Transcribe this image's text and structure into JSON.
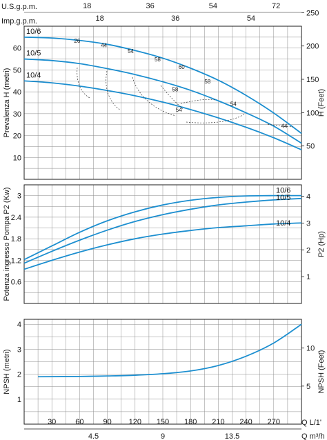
{
  "colors": {
    "curve": "#1d8fd0",
    "grid": "#8a8a8a",
    "text": "#1a1a1a"
  },
  "top_axes": {
    "usgpm": {
      "label": "U.S.g.p.m.",
      "ticks": [
        "18",
        "36",
        "54",
        "72"
      ]
    },
    "impgpm": {
      "label": "Imp.g.p.m.",
      "ticks": [
        "18",
        "36",
        "54"
      ]
    }
  },
  "bottom_axes": {
    "q_lmin": {
      "label": "Q  L/1'",
      "ticks": [
        "30",
        "60",
        "90",
        "120",
        "150",
        "180",
        "210",
        "240",
        "270"
      ]
    },
    "q_m3h": {
      "label": "Q  m³/h",
      "ticks": [
        "4.5",
        "9",
        "13.5"
      ]
    }
  },
  "chart_data": [
    {
      "type": "line",
      "ylabel": "Prevalenza H (metri)",
      "y2label": "H (Feet)",
      "xlim": [
        0,
        300
      ],
      "ylim": [
        0,
        70
      ],
      "y_ticks": [
        "10",
        "20",
        "30",
        "40",
        "50",
        "60"
      ],
      "y2_ticks": [
        "50",
        "100",
        "150",
        "200",
        "250"
      ],
      "series": [
        {
          "name": "10/6",
          "x": [
            0,
            30,
            60,
            90,
            120,
            150,
            180,
            210,
            240,
            270,
            300
          ],
          "values": [
            65,
            64.6,
            63.5,
            61.7,
            58.9,
            55.4,
            50.8,
            45.3,
            38.4,
            30.3,
            21
          ]
        },
        {
          "name": "10/5",
          "x": [
            0,
            30,
            60,
            90,
            120,
            150,
            180,
            210,
            240,
            270,
            300
          ],
          "values": [
            55,
            54.3,
            52.9,
            50.6,
            47.9,
            44.6,
            40.7,
            35.9,
            30.4,
            24.3,
            16.5
          ]
        },
        {
          "name": "10/4",
          "x": [
            0,
            30,
            60,
            90,
            120,
            150,
            180,
            210,
            240,
            270,
            300
          ],
          "values": [
            45,
            44.1,
            42.6,
            40.6,
            38.2,
            35.3,
            31.9,
            28.1,
            23.8,
            19,
            13.5
          ]
        }
      ],
      "efficiency_labels": [
        {
          "text": "26",
          "x": 57,
          "y": 63.4
        },
        {
          "text": "44",
          "x": 86,
          "y": 61.4
        },
        {
          "text": "54",
          "x": 115,
          "y": 58.6
        },
        {
          "text": "58",
          "x": 144,
          "y": 54.9
        },
        {
          "text": "60",
          "x": 170,
          "y": 51.4
        },
        {
          "text": "58",
          "x": 198,
          "y": 44.7
        },
        {
          "text": "58",
          "x": 163,
          "y": 41.2
        },
        {
          "text": "54",
          "x": 167,
          "y": 31.8
        },
        {
          "text": "54",
          "x": 226,
          "y": 34.6
        },
        {
          "text": "44",
          "x": 281,
          "y": 24.4
        }
      ]
    },
    {
      "type": "line",
      "ylabel": "Potenza ingresso Pompa P2 (Kw)",
      "y2label": "P2 (Hp)",
      "xlim": [
        0,
        300
      ],
      "ylim": [
        0,
        3.3
      ],
      "y_ticks": [
        "0.6",
        "1.2",
        "1.8",
        "2.4",
        "3"
      ],
      "y2_ticks": [
        "1",
        "2",
        "3",
        "4"
      ],
      "series": [
        {
          "name": "10/6",
          "x": [
            0,
            30,
            60,
            90,
            120,
            150,
            180,
            210,
            240,
            270,
            300
          ],
          "values": [
            1.22,
            1.6,
            1.98,
            2.3,
            2.55,
            2.74,
            2.87,
            2.95,
            2.99,
            3.0,
            3.0
          ]
        },
        {
          "name": "10/5",
          "x": [
            0,
            30,
            60,
            90,
            120,
            150,
            180,
            210,
            240,
            270,
            300
          ],
          "values": [
            1.12,
            1.45,
            1.76,
            2.04,
            2.28,
            2.47,
            2.62,
            2.74,
            2.82,
            2.88,
            2.92
          ]
        },
        {
          "name": "10/4",
          "x": [
            0,
            30,
            60,
            90,
            120,
            150,
            180,
            210,
            240,
            270,
            300
          ],
          "values": [
            0.95,
            1.2,
            1.43,
            1.63,
            1.8,
            1.93,
            2.03,
            2.11,
            2.16,
            2.21,
            2.24
          ]
        }
      ]
    },
    {
      "type": "line",
      "ylabel": "NPSH (metri)",
      "y2label": "NPSH (Feet)",
      "xlim": [
        0,
        300
      ],
      "ylim": [
        0,
        4
      ],
      "y_ticks": [
        "1",
        "2",
        "3",
        "4"
      ],
      "y2_ticks": [
        "5",
        "10"
      ],
      "series": [
        {
          "x": [
            15,
            60,
            90,
            120,
            150,
            180,
            210,
            240,
            270,
            300
          ],
          "values": [
            1.9,
            1.91,
            1.93,
            1.96,
            2.02,
            2.13,
            2.35,
            2.72,
            3.25,
            4.0
          ]
        }
      ]
    }
  ]
}
